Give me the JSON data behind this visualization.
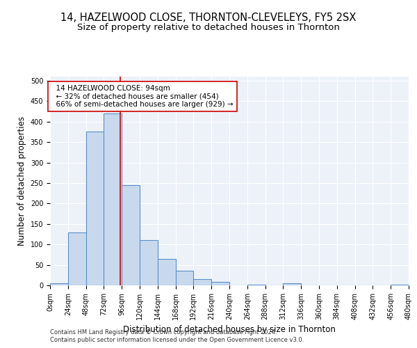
{
  "title": "14, HAZELWOOD CLOSE, THORNTON-CLEVELEYS, FY5 2SX",
  "subtitle": "Size of property relative to detached houses in Thornton",
  "xlabel": "Distribution of detached houses by size in Thornton",
  "ylabel": "Number of detached properties",
  "footnote1": "Contains HM Land Registry data © Crown copyright and database right 2024.",
  "footnote2": "Contains public sector information licensed under the Open Government Licence v3.0.",
  "bar_color": "#c9d9ed",
  "bar_edge_color": "#5b8fc9",
  "annotation_box_color": "#cc0000",
  "annotation_line_color": "#cc0000",
  "property_size": 94,
  "property_label": "14 HAZELWOOD CLOSE: 94sqm",
  "smaller_pct": "32%",
  "smaller_count": 454,
  "larger_semi_pct": "66%",
  "larger_semi_count": 929,
  "bin_width": 24,
  "bin_starts": [
    0,
    24,
    48,
    72,
    96,
    120,
    144,
    168,
    192,
    216,
    240,
    264,
    288,
    312,
    336,
    360,
    384,
    408,
    432,
    456
  ],
  "bin_counts": [
    5,
    130,
    375,
    420,
    245,
    110,
    65,
    35,
    15,
    8,
    0,
    2,
    0,
    5,
    0,
    0,
    0,
    0,
    0,
    2
  ],
  "ylim": [
    0,
    510
  ],
  "yticks": [
    0,
    50,
    100,
    150,
    200,
    250,
    300,
    350,
    400,
    450,
    500
  ],
  "background_color": "#edf2f9",
  "grid_color": "#ffffff",
  "title_fontsize": 10.5,
  "subtitle_fontsize": 9.5,
  "axis_label_fontsize": 8.5,
  "tick_fontsize": 7,
  "annotation_fontsize": 7.5,
  "footnote_fontsize": 6
}
